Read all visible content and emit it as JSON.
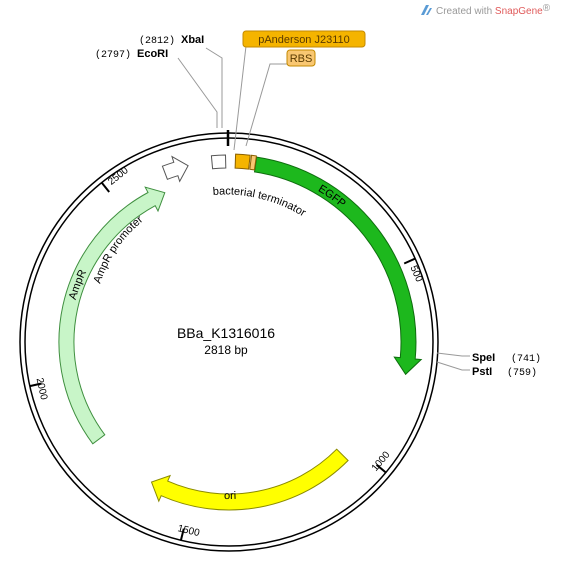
{
  "watermark": {
    "prefix": "Created with ",
    "brand": "SnapGene",
    "reg": "®",
    "icon": "snapgene-logo-icon",
    "brand_color": "#e05a5a"
  },
  "plasmid": {
    "name": "BBa_K1316016",
    "length_label": "2818 bp",
    "length": 2818
  },
  "sites": [
    {
      "name": "XbaI",
      "pos": "(2812)"
    },
    {
      "name": "EcoRI",
      "pos": "(2797)"
    },
    {
      "name": "SpeI",
      "pos": "(741)"
    },
    {
      "name": "PstI",
      "pos": "(759)"
    }
  ],
  "tagged_features": [
    {
      "label": "pAnderson J23110",
      "color": "#f5b400"
    },
    {
      "label": "RBS",
      "color": "#f9c772"
    }
  ],
  "features": [
    {
      "label": "EGFP",
      "start": 51,
      "end": 770,
      "color": "#1db81d",
      "stroke": "#0e6e0e",
      "text_color": "#ffffff"
    },
    {
      "label": "ori",
      "start": 1040,
      "end": 1620,
      "color": "#ffff00",
      "stroke": "#8a8a00",
      "text_color": "#000000"
    },
    {
      "label": "AmpR",
      "start": 1810,
      "end": 2620,
      "color": "#c8f5c8",
      "stroke": "#3f8f3f",
      "text_color": "#000000"
    },
    {
      "label": "AmpR promoter",
      "start": 2640,
      "end": 2700,
      "color": "#ffffff",
      "stroke": "#555555",
      "text_color": "#000000"
    },
    {
      "label": "bacterial terminator",
      "start": 2760,
      "end": 2794,
      "color": "#ffffff",
      "stroke": "#555555",
      "text_color": "#000000"
    },
    {
      "label": "pAnderson J23110",
      "start": 2818,
      "end": 35,
      "color": "#f5b400",
      "stroke": "#8a6000",
      "text_color": "#000000"
    },
    {
      "label": "RBS",
      "start": 38,
      "end": 50,
      "color": "#f9c772",
      "stroke": "#8a6000",
      "text_color": "#000000"
    }
  ],
  "ticks": [
    {
      "label": "500",
      "value": 500
    },
    {
      "label": "1000",
      "value": 1000
    },
    {
      "label": "1500",
      "value": 1500
    },
    {
      "label": "2000",
      "value": 2000
    },
    {
      "label": "2500",
      "value": 2500
    }
  ]
}
